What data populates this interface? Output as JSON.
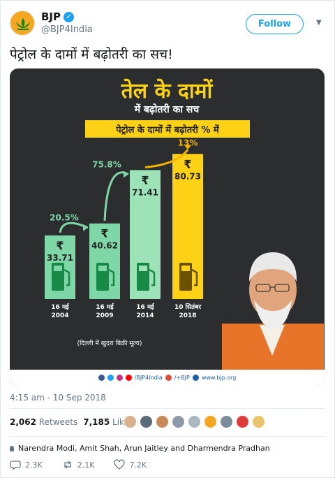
{
  "account": {
    "name": "BJP",
    "handle": "@BJP4India",
    "follow_label": "Follow"
  },
  "tweet": {
    "text": "पेट्रोल के दामों में बढ़ोतरी का सच!",
    "timestamp": "4:15 am - 10 Sep 2018",
    "retweets_count": "2,062",
    "retweets_label": "Retweets",
    "likes_count": "7,185",
    "likes_label": "Likes",
    "replying_to": "Narendra Modi, Amit Shah, Arun Jaitley and Dharmendra Pradhan",
    "reply_count": "2.3K",
    "retweet_count": "2.1K",
    "like_count": "7.2K"
  },
  "infographic": {
    "title_line1": "तेल के दामों",
    "title_line2": "में बढ़ोतरी का सच",
    "banner": "पेट्रोल के दामों में बढ़ोतरी % में",
    "note": "(दिल्ली में खुदरा बिक्री मूल्य)",
    "footer_handle": "/BJP4India",
    "footer_gplus": "/+BJP",
    "footer_web": "www.bjp.org",
    "currency": "₹",
    "colors": {
      "background": "#2b2d2f",
      "bar_green": "#7fd6a6",
      "bar_green_light": "#9ee3b8",
      "bar_yellow": "#fcd116",
      "title": "#fcd116",
      "arrow_green": "#7fd6a6",
      "arrow_yellow": "#f5b400",
      "pump_green": "#178a48",
      "pump_dark": "#6b5200"
    }
  },
  "chart_data": {
    "type": "bar",
    "title": "पेट्रोल के दामों में बढ़ोतरी % में",
    "categories": [
      "16 मई 2004",
      "16 मई 2009",
      "16 मई 2014",
      "10 सितंबर 2018"
    ],
    "category_lines": [
      [
        "16 मई",
        "2004"
      ],
      [
        "16 मई",
        "2009"
      ],
      [
        "16 मई",
        "2014"
      ],
      [
        "10 सितंबर",
        "2018"
      ]
    ],
    "values": [
      33.71,
      40.62,
      71.41,
      80.73
    ],
    "value_labels": [
      "33.71",
      "40.62",
      "71.41",
      "80.73"
    ],
    "increase_labels": [
      "20.5%",
      "75.8%",
      "13%"
    ],
    "unit": "₹",
    "xlabel": "",
    "ylabel": ""
  }
}
